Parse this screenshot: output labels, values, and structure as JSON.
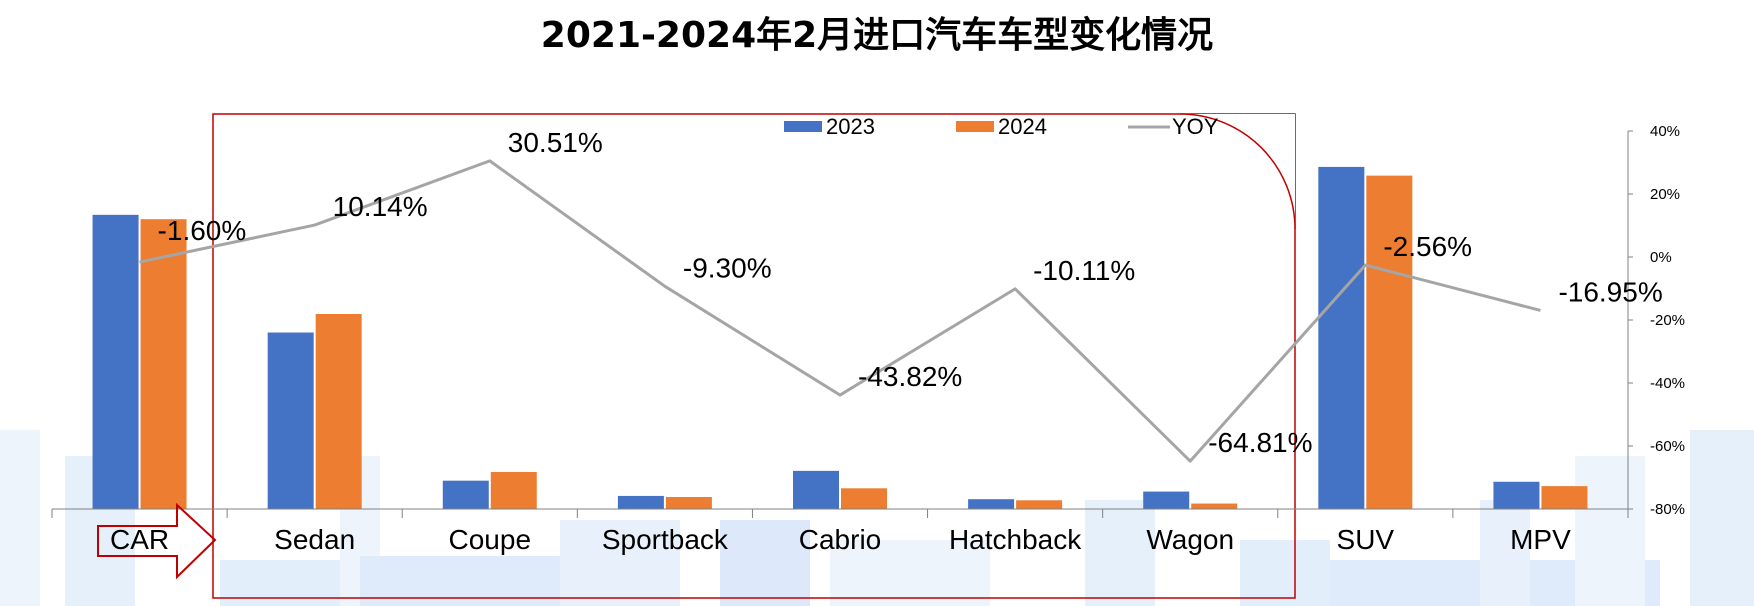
{
  "chart_data": {
    "type": "bar",
    "title": "2021-2024年2月进口汽车车型变化情况",
    "categories": [
      "CAR",
      "Sedan",
      "Coupe",
      "Sportback",
      "Cabrio",
      "Hatchback",
      "Wagon",
      "SUV",
      "MPV"
    ],
    "series": [
      {
        "name": "2023",
        "type": "bar",
        "axis": "left",
        "color": "#4472C4",
        "values": [
          27000,
          16200,
          2600,
          1200,
          3500,
          900,
          1600,
          31400,
          2500
        ]
      },
      {
        "name": "2024",
        "type": "bar",
        "axis": "left",
        "color": "#ED7D31",
        "values": [
          26600,
          17900,
          3400,
          1100,
          1900,
          800,
          500,
          30600,
          2100
        ]
      },
      {
        "name": "YOY",
        "type": "line",
        "axis": "right",
        "color": "#A5A5A5",
        "values": [
          -1.6,
          10.14,
          30.51,
          -9.3,
          -43.82,
          -10.11,
          -64.81,
          -2.56,
          -16.95
        ],
        "labels": [
          "-1.60%",
          "10.14%",
          "30.51%",
          "-9.30%",
          "-43.82%",
          "-10.11%",
          "-64.81%",
          "-2.56%",
          "-16.95%"
        ]
      }
    ],
    "y_left": {
      "min": 0,
      "max": 38000,
      "tick_labels_shown": false
    },
    "y_right": {
      "min": -80,
      "max": 40,
      "step": 20,
      "tick_labels": [
        "40%",
        "20%",
        "0%",
        "-20%",
        "-40%",
        "-60%",
        "-80%"
      ]
    },
    "legend": {
      "position": "top-center",
      "entries": [
        "2023",
        "2024",
        "YOY"
      ]
    },
    "grid": false,
    "annotations": {
      "highlight_box": "Sedan to Wagon",
      "arrow": "CAR → Sedan"
    }
  }
}
